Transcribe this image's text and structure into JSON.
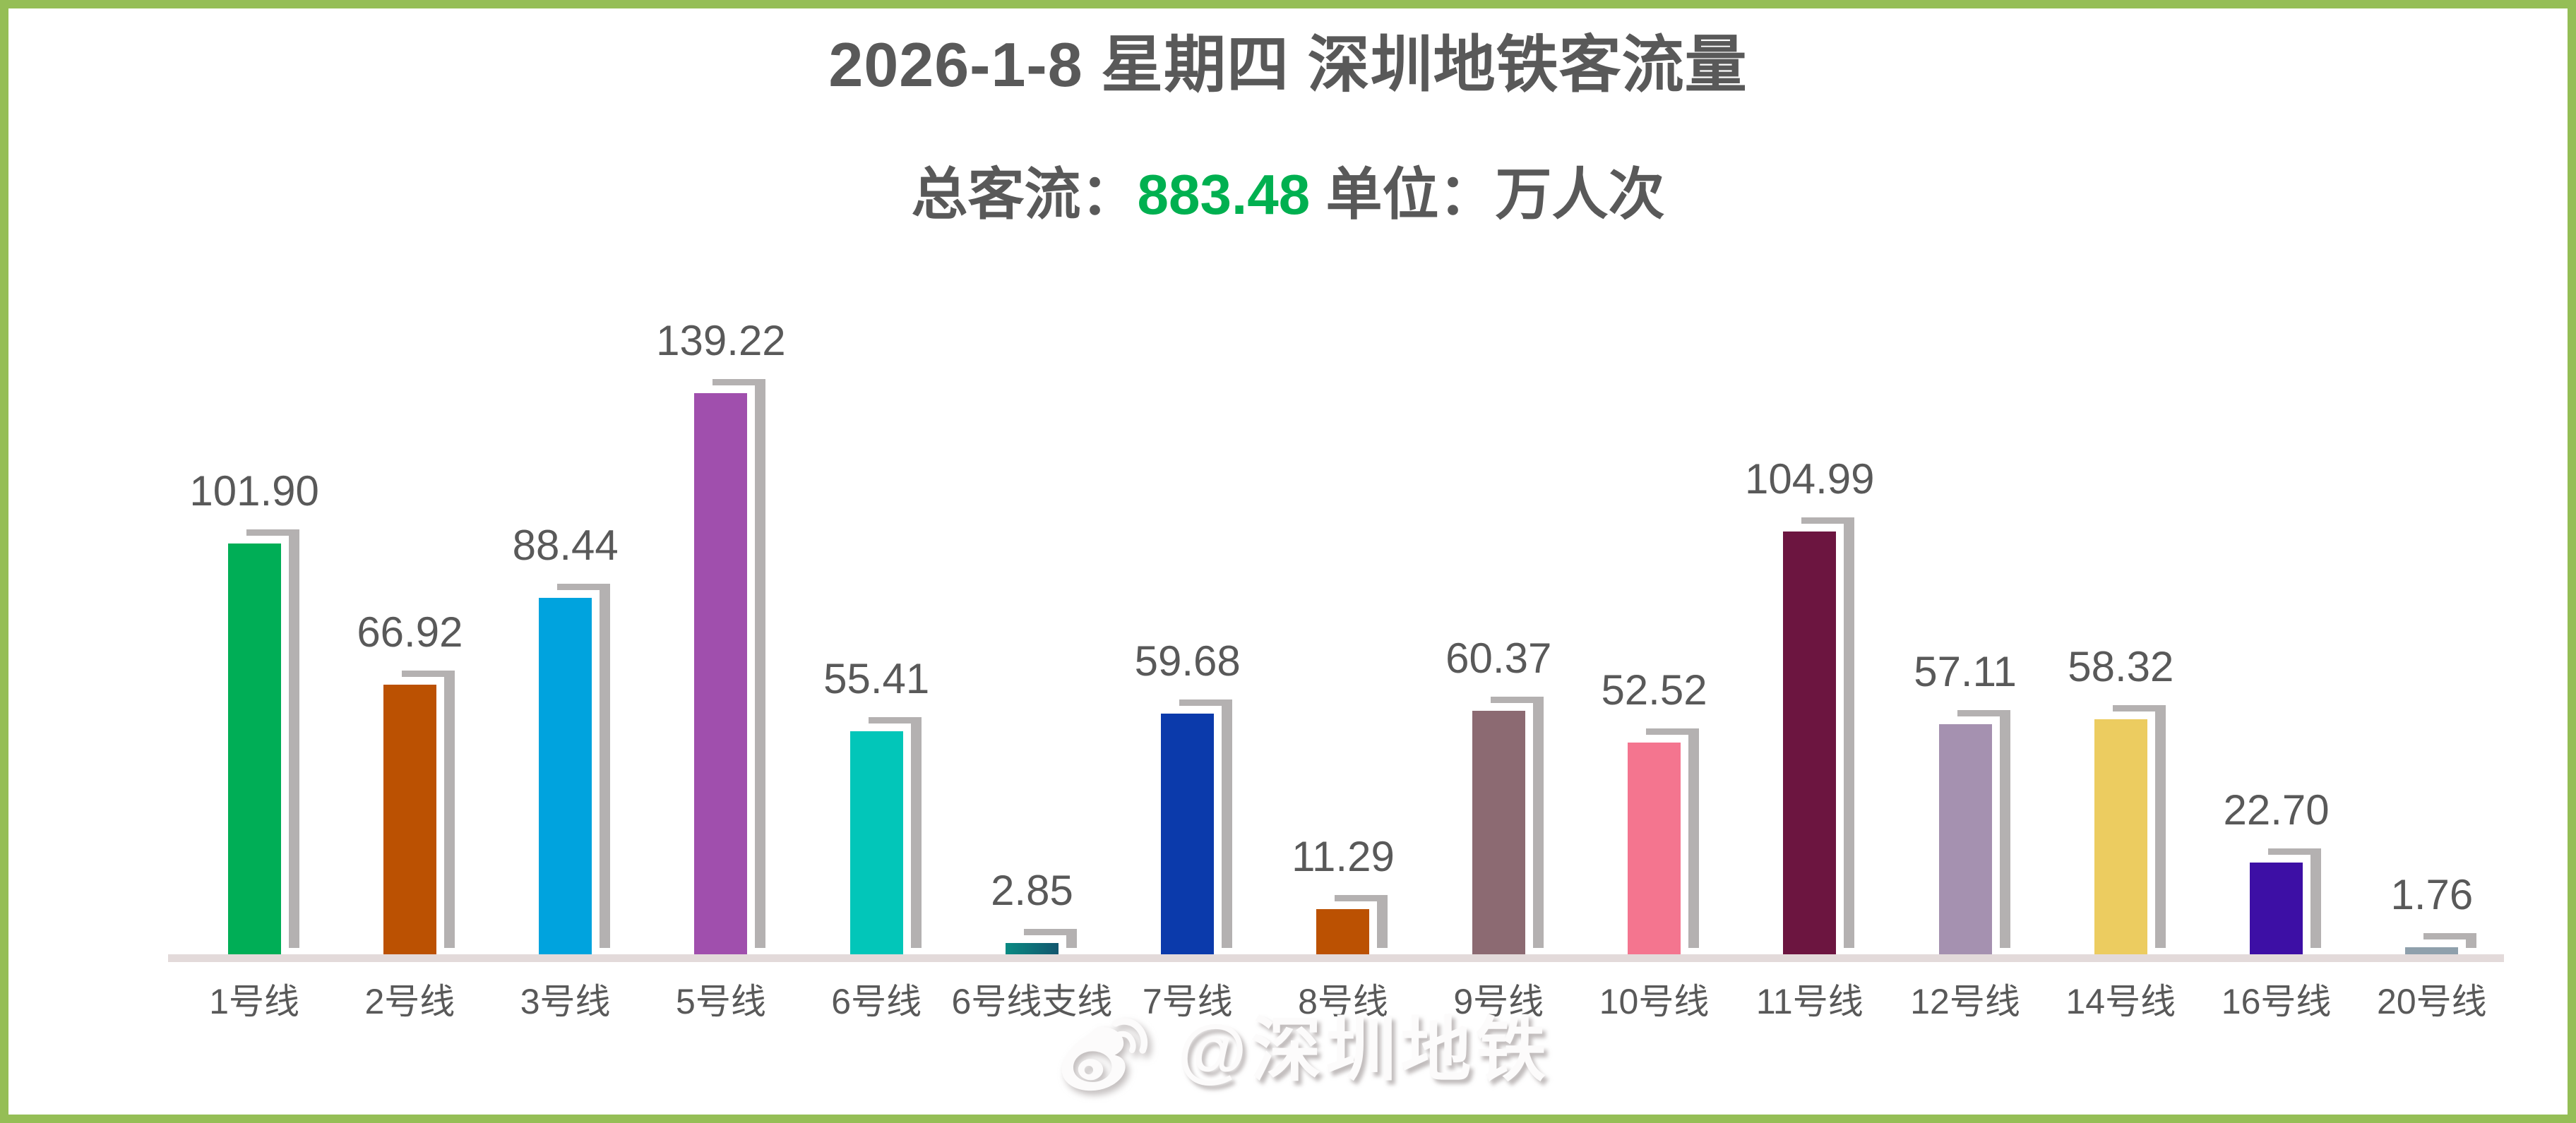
{
  "frame": {
    "border_color": "#95BE56"
  },
  "header": {
    "title": "2026-1-8 星期四 深圳地铁客流量",
    "subtitle_prefix": "总客流：",
    "total_value": "883.48",
    "subtitle_suffix": " 单位：万人次",
    "accent_color": "#00B050",
    "text_color": "#595959"
  },
  "watermark": {
    "icon": "weibo-icon",
    "text": "@深圳地铁"
  },
  "chart_data": {
    "type": "bar",
    "title": "2026-1-8 星期四 深圳地铁客流量",
    "total": 883.48,
    "unit": "万人次",
    "ylim": [
      0,
      150
    ],
    "grid": false,
    "legend": "none",
    "value_labels": "above bars, 2 decimals",
    "shadow_style": "gray offset top-right block shadow (#B4B1B1), bars outlined white",
    "baseline_color": "#E3DADA",
    "categories": [
      "1号线",
      "2号线",
      "3号线",
      "5号线",
      "6号线",
      "6号线支线",
      "7号线",
      "8号线",
      "9号线",
      "10号线",
      "11号线",
      "12号线",
      "14号线",
      "16号线",
      "20号线"
    ],
    "values": [
      101.9,
      66.92,
      88.44,
      139.22,
      55.41,
      2.85,
      59.68,
      11.29,
      60.37,
      52.52,
      104.99,
      57.11,
      58.32,
      22.7,
      1.76
    ],
    "bar_colors": [
      "#00AE56",
      "#BB5102",
      "#00A3DE",
      "#A04FAD",
      "#02C6B9",
      "#0A8A82",
      "#0B3AAB",
      "#BB5102",
      "#8C6A72",
      "#F4758F",
      "#6C1540",
      "#A591B0",
      "#ECCC60",
      "#3D0FA5",
      "#8FA0AC"
    ],
    "bar_colors2": [
      null,
      null,
      null,
      null,
      null,
      "#12566E",
      null,
      null,
      null,
      null,
      null,
      null,
      null,
      null,
      null
    ]
  }
}
